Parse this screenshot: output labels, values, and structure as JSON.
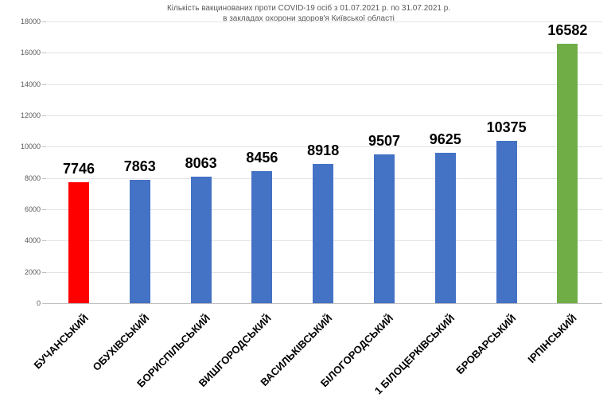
{
  "chart_data": {
    "type": "bar",
    "title_line1": "Кількість вакцинованих проти COVID-19 осіб з 01.07.2021 р. по 31.07.2021 р.",
    "title_line2": "в закладах охорони здоров'я Київської області",
    "categories": [
      "БУЧАНСЬКИЙ",
      "ОБУХІВСЬКИЙ",
      "БОРИСПІЛЬСЬКИЙ",
      "ВИШГОРОДСЬКИЙ",
      "ВАСИЛЬКІВСЬКИЙ",
      "БІЛОГОРОДСЬКИЙ",
      "1 БІЛОЦЕРКІВСЬКИЙ",
      "БРОВАРСЬКИЙ",
      "ІРПІНСЬКИЙ"
    ],
    "values": [
      7746,
      7863,
      8063,
      8456,
      8918,
      9507,
      9625,
      10375,
      16582
    ],
    "bar_colors": [
      "#ff0000",
      "#4472c4",
      "#4472c4",
      "#4472c4",
      "#4472c4",
      "#4472c4",
      "#4472c4",
      "#4472c4",
      "#70ad47"
    ],
    "data_labels": [
      "7746",
      "7863",
      "8063",
      "8456",
      "8918",
      "9507",
      "9625",
      "10375",
      "16582"
    ],
    "xlabel": "",
    "ylabel": "",
    "ylim": [
      0,
      18000
    ],
    "ytick_step": 2000,
    "ytick_labels": [
      "0",
      "2000",
      "4000",
      "6000",
      "8000",
      "10000",
      "12000",
      "14000",
      "16000",
      "18000"
    ],
    "grid": true,
    "legend": "none",
    "colors": {
      "highlight_low": "#ff0000",
      "default_bar": "#4472c4",
      "highlight_high": "#70ad47",
      "gridline": "#e3e3e3",
      "axis": "#bfbfbf",
      "muted_text": "#595959",
      "label_text": "#000000",
      "background": "#ffffff"
    }
  }
}
